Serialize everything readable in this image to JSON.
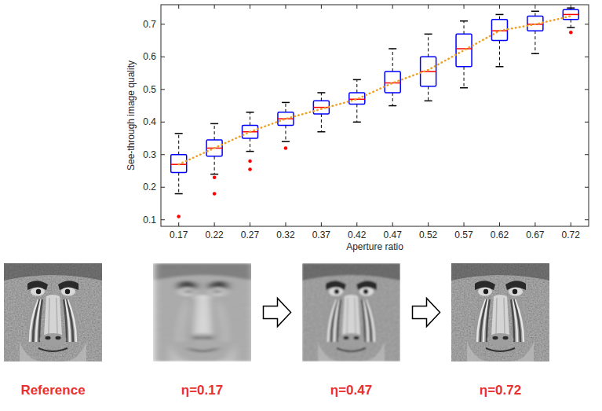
{
  "chart_data": {
    "type": "box",
    "x_label": "Aperture ratio",
    "y_label": "See-through image quality",
    "categories": [
      "0.17",
      "0.22",
      "0.27",
      "0.32",
      "0.37",
      "0.42",
      "0.47",
      "0.52",
      "0.57",
      "0.62",
      "0.67",
      "0.72"
    ],
    "ylim": [
      0.08,
      0.76
    ],
    "yticks": [
      0.1,
      0.2,
      0.3,
      0.4,
      0.5,
      0.6,
      0.7
    ],
    "series": [
      {
        "type": "box",
        "color": "#0000ff",
        "min": [
          0.18,
          0.24,
          0.31,
          0.34,
          0.37,
          0.4,
          0.45,
          0.465,
          0.505,
          0.57,
          0.61,
          0.69
        ],
        "q1": [
          0.245,
          0.295,
          0.35,
          0.39,
          0.425,
          0.455,
          0.49,
          0.51,
          0.57,
          0.65,
          0.68,
          0.715
        ],
        "median": [
          0.27,
          0.32,
          0.37,
          0.41,
          0.445,
          0.47,
          0.52,
          0.555,
          0.625,
          0.68,
          0.7,
          0.73
        ],
        "q3": [
          0.3,
          0.345,
          0.39,
          0.43,
          0.465,
          0.49,
          0.555,
          0.6,
          0.67,
          0.715,
          0.725,
          0.745
        ],
        "max": [
          0.365,
          0.395,
          0.43,
          0.46,
          0.49,
          0.53,
          0.625,
          0.67,
          0.71,
          0.73,
          0.74,
          0.75
        ],
        "outliers": [
          [
            0.11
          ],
          [
            0.23,
            0.18
          ],
          [
            0.28,
            0.255
          ],
          [
            0.32
          ],
          [],
          [],
          [],
          [],
          [],
          [],
          [],
          [
            0.675
          ]
        ]
      },
      {
        "type": "line",
        "color": "#f0a020",
        "line_style": "dotted",
        "values": [
          0.27,
          0.32,
          0.37,
          0.41,
          0.44,
          0.47,
          0.52,
          0.56,
          0.62,
          0.68,
          0.7,
          0.725
        ]
      }
    ]
  },
  "panels": [
    {
      "label": "Reference"
    },
    {
      "label": "η=0.17"
    },
    {
      "label": "η=0.47"
    },
    {
      "label": "η=0.72"
    }
  ]
}
